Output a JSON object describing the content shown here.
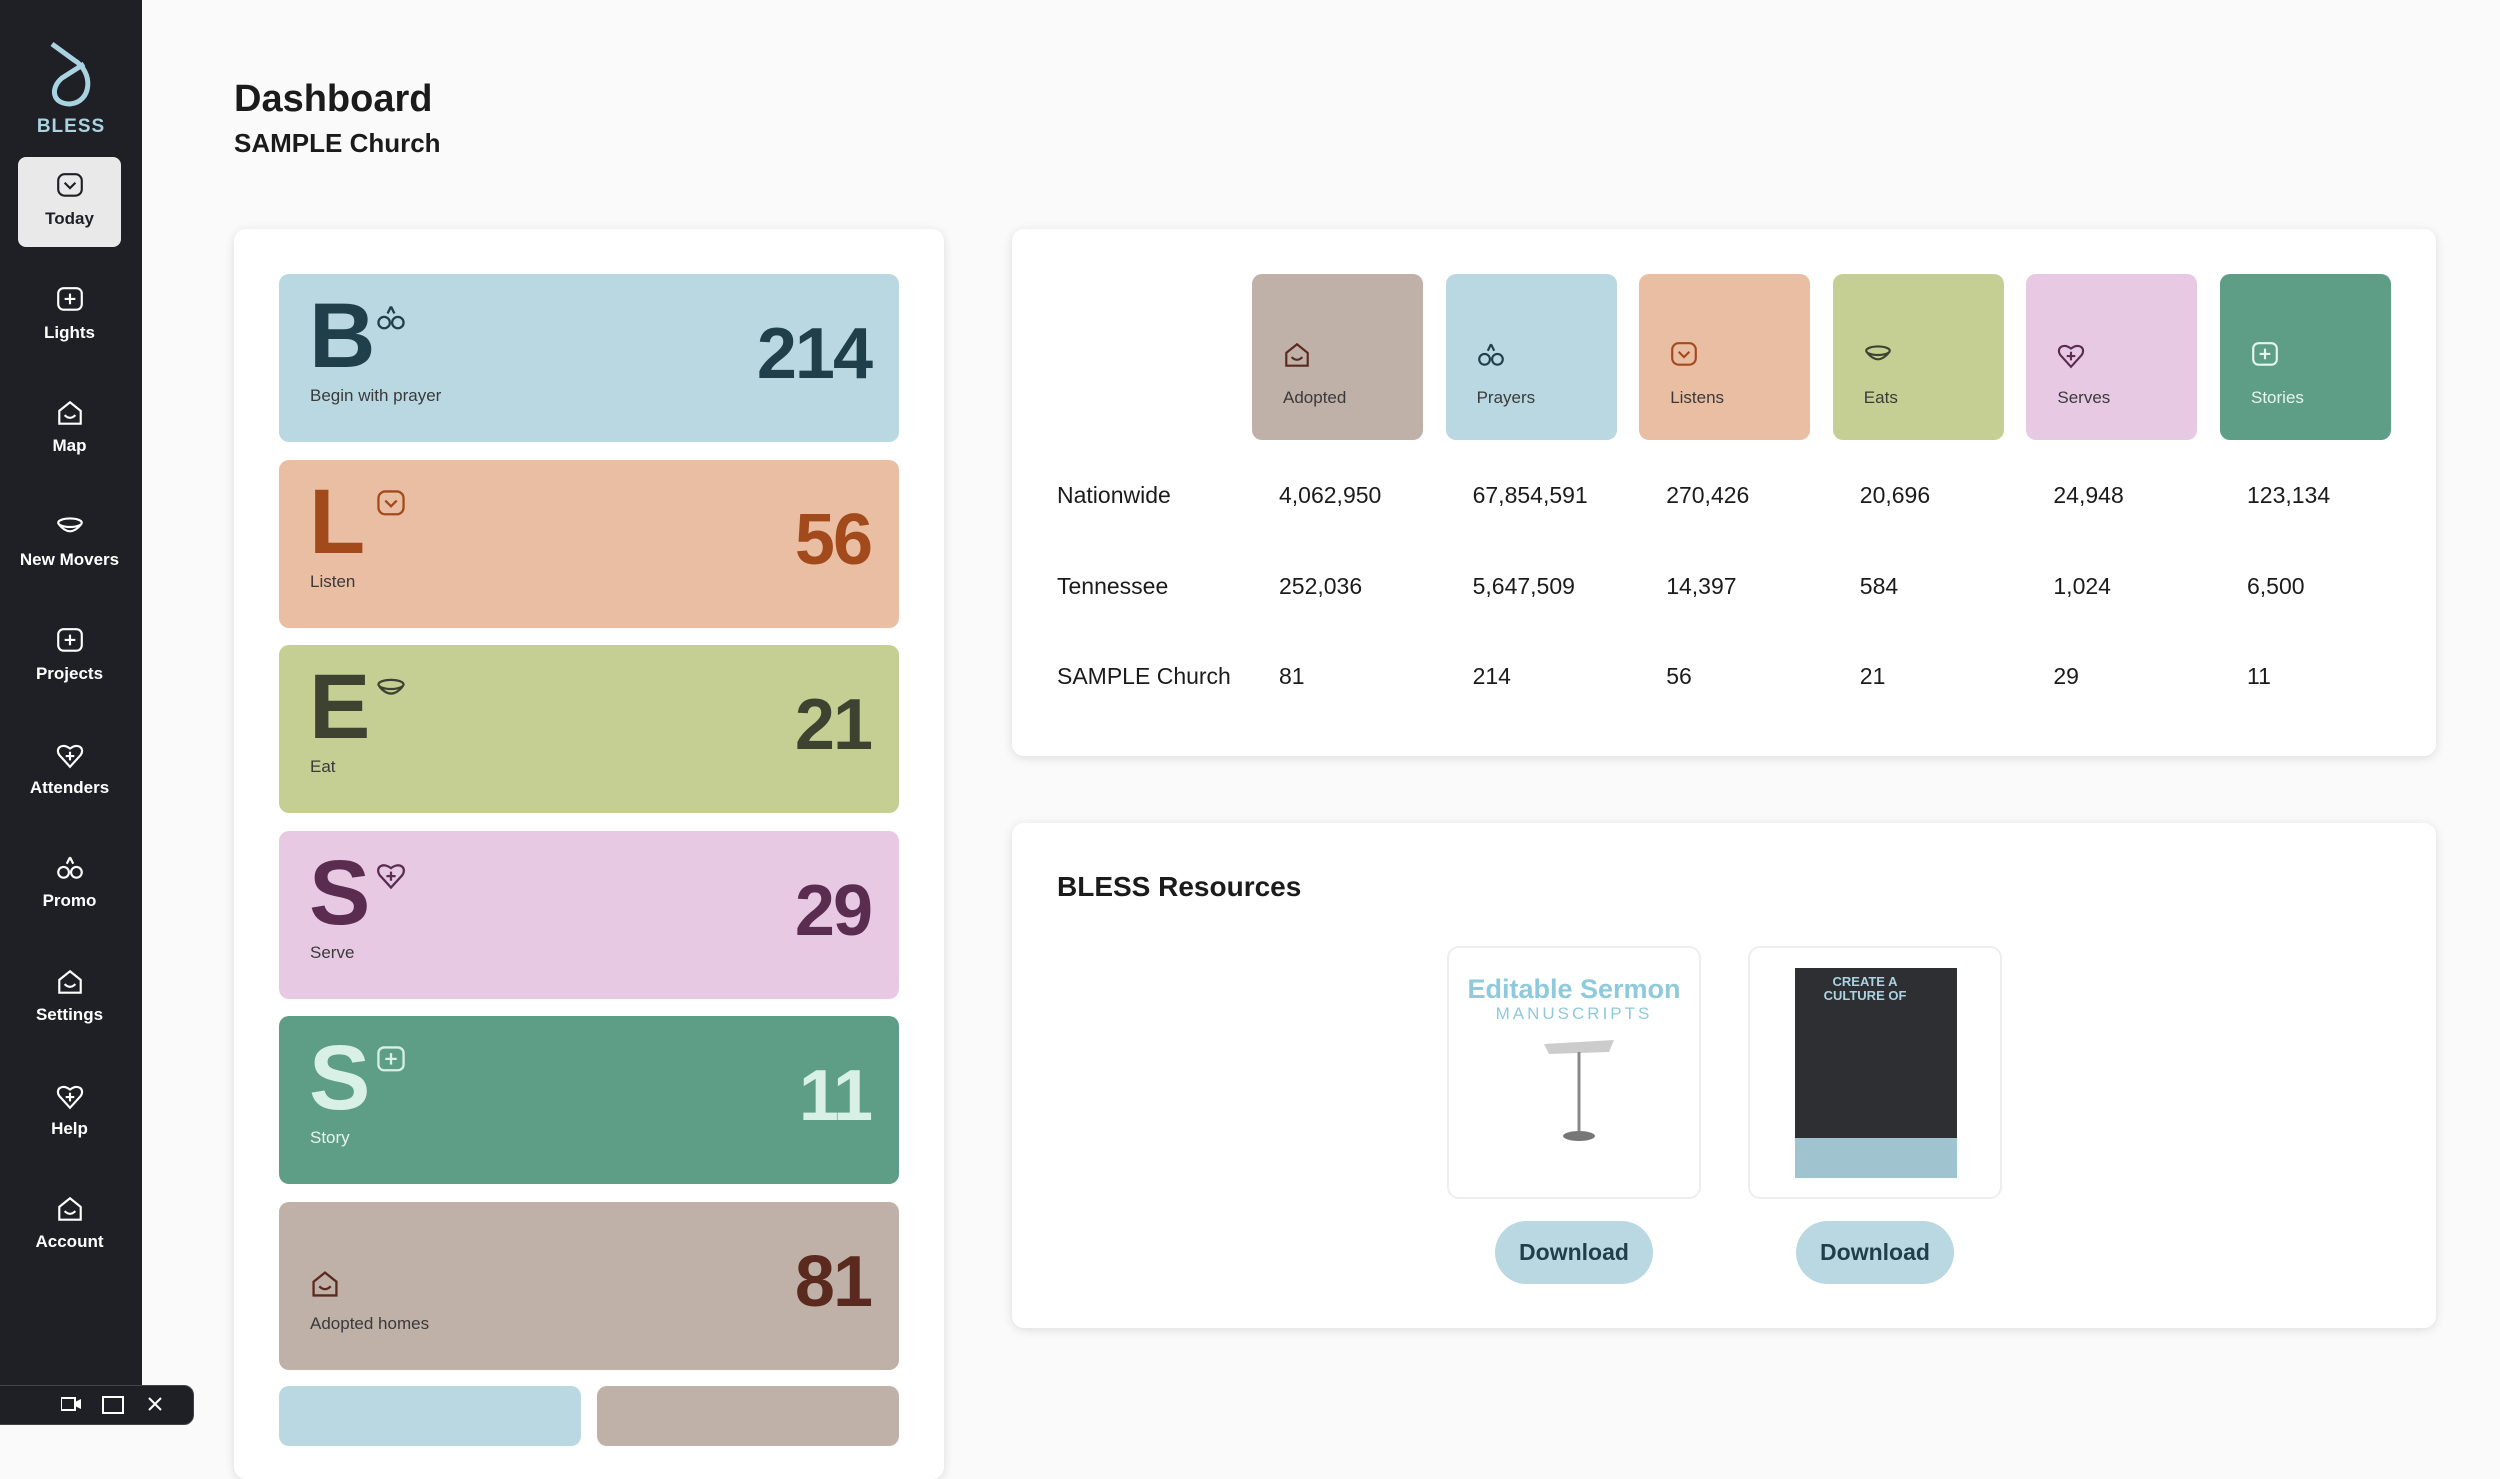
{
  "logo": "BLESS",
  "nav": [
    "Today",
    "Lights",
    "Map",
    "New Movers",
    "Projects",
    "Attenders",
    "Promo",
    "Settings",
    "Help",
    "Account"
  ],
  "header": {
    "title": "Dashboard",
    "subtitle": "SAMPLE Church"
  },
  "tiles": [
    {
      "letter": "B",
      "label": "Begin with prayer",
      "value": 214
    },
    {
      "letter": "L",
      "label": "Listen",
      "value": 56
    },
    {
      "letter": "E",
      "label": "Eat",
      "value": 21
    },
    {
      "letter": "S",
      "label": "Serve",
      "value": 29
    },
    {
      "letter": "S",
      "label": "Story",
      "value": 11
    },
    {
      "label": "Adopted homes",
      "value": 81
    }
  ],
  "stats": {
    "columns": [
      "Adopted",
      "Prayers",
      "Listens",
      "Eats",
      "Serves",
      "Stories"
    ],
    "rows": [
      {
        "name": "Nationwide",
        "values": [
          "4,062,950",
          "67,854,591",
          "270,426",
          "20,696",
          "24,948",
          "123,134"
        ]
      },
      {
        "name": "Tennessee",
        "values": [
          "252,036",
          "5,647,509",
          "14,397",
          "584",
          "1,024",
          "6,500"
        ]
      },
      {
        "name": "SAMPLE Church",
        "values": [
          "81",
          "214",
          "56",
          "21",
          "29",
          "11"
        ]
      }
    ]
  },
  "resources": {
    "title": "BLESS Resources",
    "items": [
      {
        "thumb": [
          "Editable Sermon",
          "MANUSCRIPTS"
        ],
        "button": "Download"
      },
      {
        "thumb": [
          "CREATE A",
          "CULTURE OF"
        ],
        "button": "Download"
      }
    ]
  }
}
